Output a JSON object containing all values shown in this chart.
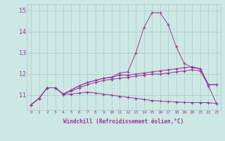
{
  "x": [
    0,
    1,
    2,
    3,
    4,
    5,
    6,
    7,
    8,
    9,
    10,
    11,
    12,
    13,
    14,
    15,
    16,
    17,
    18,
    19,
    20,
    21,
    22,
    23
  ],
  "line1": [
    10.55,
    10.85,
    11.35,
    11.35,
    11.05,
    11.25,
    11.45,
    11.6,
    11.7,
    11.8,
    11.85,
    12.05,
    12.1,
    13.0,
    14.2,
    14.9,
    14.9,
    14.35,
    13.3,
    12.5,
    12.3,
    12.25,
    11.5,
    11.5
  ],
  "line2": [
    10.55,
    10.85,
    11.35,
    11.35,
    11.05,
    11.25,
    11.45,
    11.6,
    11.7,
    11.8,
    11.85,
    11.95,
    11.95,
    12.0,
    12.05,
    12.1,
    12.15,
    12.2,
    12.25,
    12.3,
    12.35,
    12.25,
    11.5,
    11.5
  ],
  "line3": [
    10.55,
    10.85,
    11.35,
    11.35,
    11.05,
    11.2,
    11.35,
    11.5,
    11.6,
    11.7,
    11.75,
    11.8,
    11.85,
    11.9,
    11.95,
    12.0,
    12.0,
    12.05,
    12.1,
    12.15,
    12.2,
    12.15,
    11.45,
    10.6
  ],
  "line4": [
    10.55,
    10.85,
    11.35,
    11.35,
    11.05,
    11.05,
    11.1,
    11.15,
    11.1,
    11.05,
    11.0,
    10.95,
    10.9,
    10.85,
    10.8,
    10.75,
    10.72,
    10.7,
    10.68,
    10.66,
    10.65,
    10.65,
    10.65,
    10.6
  ],
  "line_color": "#993399",
  "bg_color": "#cce8e4",
  "grid_color": "#aec8c4",
  "ylabel_values": [
    11,
    12,
    13,
    14,
    15
  ],
  "xlabel_values": [
    0,
    1,
    2,
    3,
    4,
    5,
    6,
    7,
    8,
    9,
    10,
    11,
    12,
    13,
    14,
    15,
    16,
    17,
    18,
    19,
    20,
    21,
    22,
    23
  ],
  "xlabel_label": "Windchill (Refroidissement éolien,°C)",
  "ylim": [
    10.3,
    15.3
  ],
  "xlim": [
    -0.5,
    23.5
  ]
}
